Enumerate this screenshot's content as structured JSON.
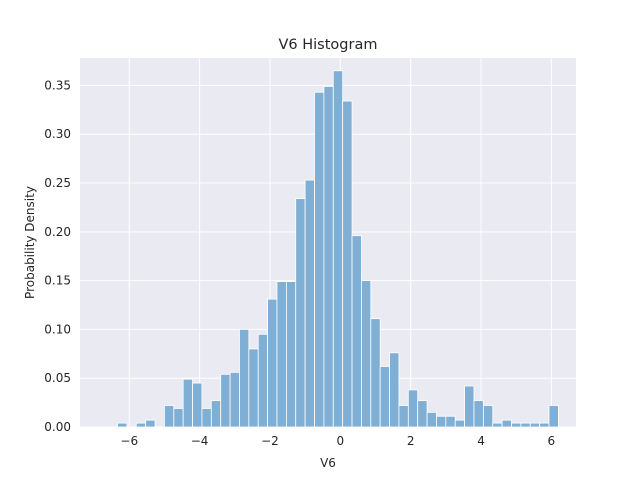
{
  "chart_data": {
    "type": "bar",
    "title": "V6 Histogram",
    "xlabel": "V6",
    "ylabel": "Probability Density",
    "xlim": [
      -7.4,
      6.7
    ],
    "ylim": [
      0,
      0.3781
    ],
    "xticks": [
      -6,
      -4,
      -2,
      0,
      2,
      4,
      6
    ],
    "xtick_labels": [
      "−6",
      "−4",
      "−2",
      "0",
      "2",
      "4",
      "6"
    ],
    "yticks": [
      0.0,
      0.05,
      0.1,
      0.15,
      0.2,
      0.25,
      0.3,
      0.35
    ],
    "ytick_labels": [
      "0.00",
      "0.05",
      "0.10",
      "0.15",
      "0.20",
      "0.25",
      "0.30",
      "0.35"
    ],
    "grid": true,
    "bin_width": 0.2667,
    "series": [
      {
        "bin_left_edges": [
          -6.6,
          -6.333,
          -6.067,
          -5.8,
          -5.533,
          -5.267,
          -5.0,
          -4.733,
          -4.467,
          -4.2,
          -3.933,
          -3.667,
          -3.4,
          -3.133,
          -2.867,
          -2.6,
          -2.333,
          -2.067,
          -1.8,
          -1.533,
          -1.267,
          -1.0,
          -0.733,
          -0.467,
          -0.2,
          0.067,
          0.333,
          0.6,
          0.867,
          1.133,
          1.4,
          1.667,
          1.933,
          2.2,
          2.467,
          2.733,
          3.0,
          3.267,
          3.533,
          3.8,
          4.067,
          4.333,
          4.6,
          4.867,
          5.133,
          5.4,
          5.667,
          5.933
        ],
        "values": [
          0.0,
          0.004,
          0.0,
          0.004,
          0.007,
          0.0,
          0.022,
          0.019,
          0.049,
          0.045,
          0.019,
          0.027,
          0.054,
          0.056,
          0.1,
          0.08,
          0.095,
          0.131,
          0.149,
          0.149,
          0.234,
          0.253,
          0.343,
          0.349,
          0.365,
          0.334,
          0.196,
          0.15,
          0.111,
          0.062,
          0.076,
          0.022,
          0.038,
          0.027,
          0.015,
          0.011,
          0.011,
          0.007,
          0.042,
          0.027,
          0.022,
          0.004,
          0.007,
          0.004,
          0.004,
          0.004,
          0.004,
          0.022
        ]
      }
    ],
    "colors": {
      "bar": "#7fafd4",
      "plot_bg": "#eaeaf2",
      "grid": "#ffffff"
    }
  }
}
